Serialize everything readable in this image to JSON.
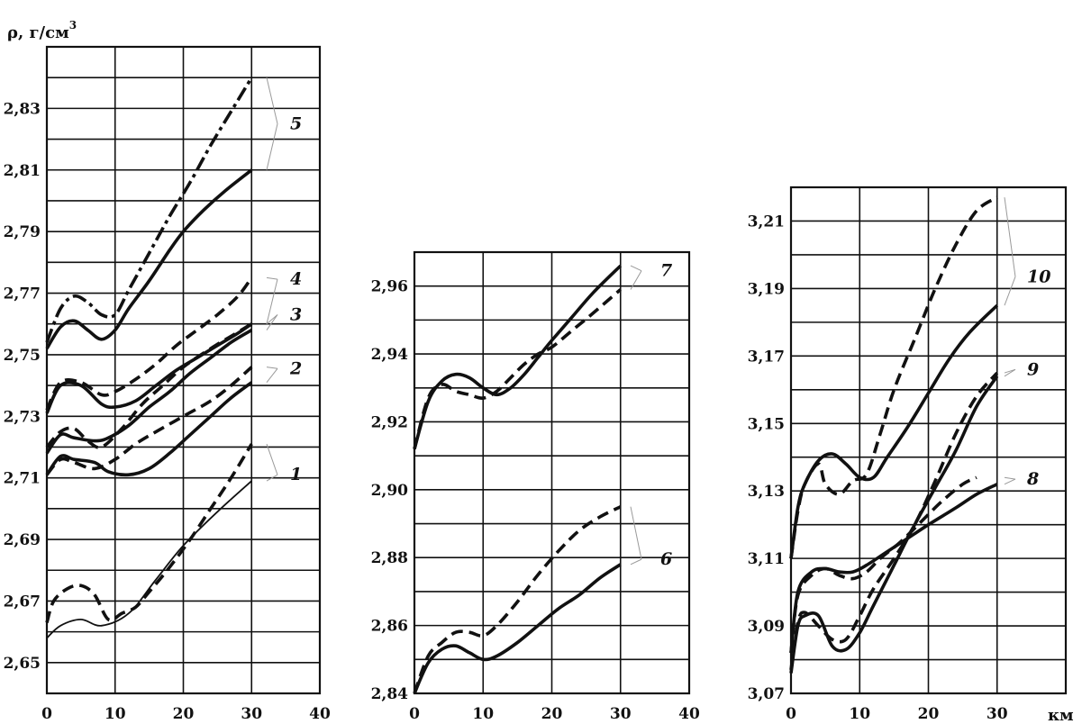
{
  "chart_data": [
    {
      "type": "line",
      "ylabel": "ρ, г/см",
      "ylabel_sup": "3",
      "xlabel": "",
      "xlim": [
        0,
        40
      ],
      "ylim": [
        2.64,
        2.85
      ],
      "x_ticks": [
        {
          "v": 0,
          "label": "0"
        },
        {
          "v": 10,
          "label": "10"
        },
        {
          "v": 20,
          "label": "20"
        },
        {
          "v": 30,
          "label": "30"
        },
        {
          "v": 40,
          "label": "40"
        }
      ],
      "y_ticks": [
        {
          "v": 2.65,
          "label": "2,65"
        },
        {
          "v": 2.67,
          "label": "2,67"
        },
        {
          "v": 2.69,
          "label": "2,69"
        },
        {
          "v": 2.71,
          "label": "2,71"
        },
        {
          "v": 2.73,
          "label": "2,73"
        },
        {
          "v": 2.75,
          "label": "2,75"
        },
        {
          "v": 2.77,
          "label": "2,77"
        },
        {
          "v": 2.79,
          "label": "2,79"
        },
        {
          "v": 2.81,
          "label": "2,81"
        },
        {
          "v": 2.83,
          "label": "2,83"
        }
      ],
      "grid": true,
      "series": [
        {
          "label": "1",
          "style": "solid-thin",
          "x": [
            0,
            2,
            5,
            8,
            12,
            16,
            20,
            25,
            30
          ],
          "y": [
            2.658,
            2.662,
            2.664,
            2.662,
            2.666,
            2.677,
            2.688,
            2.699,
            2.709
          ]
        },
        {
          "label": "1",
          "style": "dashed",
          "x": [
            0,
            1,
            3,
            5,
            7,
            9,
            11,
            13,
            15,
            18,
            21,
            24,
            27,
            30
          ],
          "y": [
            2.663,
            2.67,
            2.674,
            2.675,
            2.672,
            2.664,
            2.666,
            2.668,
            2.673,
            2.681,
            2.69,
            2.7,
            2.71,
            2.721
          ]
        },
        {
          "label": "2",
          "style": "solid",
          "x": [
            0,
            2,
            4,
            7,
            9,
            12,
            15,
            18,
            21,
            24,
            27,
            30
          ],
          "y": [
            2.711,
            2.717,
            2.716,
            2.715,
            2.712,
            2.711,
            2.713,
            2.718,
            2.724,
            2.73,
            2.736,
            2.741
          ]
        },
        {
          "label": "2",
          "style": "dashed",
          "x": [
            0,
            2,
            4,
            7,
            10,
            13,
            16,
            20,
            24,
            27,
            30
          ],
          "y": [
            2.711,
            2.716,
            2.715,
            2.713,
            2.716,
            2.721,
            2.725,
            2.73,
            2.735,
            2.74,
            2.746
          ]
        },
        {
          "label": "3",
          "style": "solid",
          "x": [
            0,
            2,
            4,
            7,
            9,
            12,
            15,
            18,
            21,
            24,
            27,
            30
          ],
          "y": [
            2.718,
            2.724,
            2.723,
            2.722,
            2.723,
            2.727,
            2.733,
            2.738,
            2.744,
            2.749,
            2.754,
            2.758
          ]
        },
        {
          "label": "3",
          "style": "dashed",
          "x": [
            0,
            2,
            4,
            6,
            8,
            11,
            14,
            17,
            20,
            24,
            27,
            30
          ],
          "y": [
            2.72,
            2.725,
            2.726,
            2.722,
            2.72,
            2.726,
            2.734,
            2.74,
            2.746,
            2.752,
            2.756,
            2.76
          ]
        },
        {
          "label": "4",
          "style": "solid",
          "x": [
            0,
            2,
            5,
            8,
            10,
            13,
            16,
            19,
            22,
            25,
            28,
            30
          ],
          "y": [
            2.731,
            2.74,
            2.74,
            2.734,
            2.733,
            2.735,
            2.74,
            2.745,
            2.749,
            2.753,
            2.757,
            2.76
          ]
        },
        {
          "label": "4",
          "style": "dashed",
          "x": [
            0,
            2,
            5,
            8,
            10,
            13,
            16,
            19,
            22,
            25,
            28,
            30
          ],
          "y": [
            2.732,
            2.741,
            2.741,
            2.737,
            2.738,
            2.742,
            2.747,
            2.753,
            2.758,
            2.763,
            2.769,
            2.775
          ]
        },
        {
          "label": "5",
          "style": "solid",
          "x": [
            0,
            2,
            4,
            6,
            8,
            10,
            12,
            15,
            18,
            20,
            23,
            26,
            30
          ],
          "y": [
            2.752,
            2.759,
            2.761,
            2.758,
            2.755,
            2.758,
            2.765,
            2.774,
            2.784,
            2.79,
            2.797,
            2.803,
            2.81
          ]
        },
        {
          "label": "5",
          "style": "dashdot",
          "x": [
            0,
            2,
            4,
            6,
            8,
            10,
            12,
            15,
            18,
            21,
            24,
            27,
            30
          ],
          "y": [
            2.754,
            2.765,
            2.769,
            2.767,
            2.763,
            2.763,
            2.771,
            2.783,
            2.795,
            2.806,
            2.818,
            2.829,
            2.84
          ]
        }
      ],
      "label_positions": [
        {
          "text": "1",
          "at_x": 35,
          "at_y": 2.711
        },
        {
          "text": "2",
          "at_x": 35,
          "at_y": 2.7455
        },
        {
          "text": "3",
          "at_x": 35,
          "at_y": 2.763
        },
        {
          "text": "4",
          "at_x": 35,
          "at_y": 2.7745
        },
        {
          "text": "5",
          "at_x": 35,
          "at_y": 2.825
        }
      ]
    },
    {
      "type": "line",
      "ylabel": "",
      "xlabel": "",
      "xlim": [
        0,
        40
      ],
      "ylim": [
        2.84,
        2.97
      ],
      "x_ticks": [
        {
          "v": 0,
          "label": "0"
        },
        {
          "v": 10,
          "label": "10"
        },
        {
          "v": 20,
          "label": "20"
        },
        {
          "v": 30,
          "label": "30"
        },
        {
          "v": 40,
          "label": "40"
        }
      ],
      "y_ticks": [
        {
          "v": 2.84,
          "label": "2,84"
        },
        {
          "v": 2.86,
          "label": "2,86"
        },
        {
          "v": 2.88,
          "label": "2,88"
        },
        {
          "v": 2.9,
          "label": "2,90"
        },
        {
          "v": 2.92,
          "label": "2,92"
        },
        {
          "v": 2.94,
          "label": "2,94"
        },
        {
          "v": 2.96,
          "label": "2,96"
        }
      ],
      "grid": true,
      "series": [
        {
          "label": "6",
          "style": "solid",
          "x": [
            0,
            2,
            4,
            6,
            8,
            10,
            12,
            15,
            18,
            21,
            24,
            27,
            30
          ],
          "y": [
            2.84,
            2.849,
            2.853,
            2.854,
            2.852,
            2.85,
            2.851,
            2.855,
            2.86,
            2.865,
            2.869,
            2.874,
            2.878
          ]
        },
        {
          "label": "6",
          "style": "dashed",
          "x": [
            0,
            2,
            4,
            6,
            8,
            10,
            12,
            15,
            18,
            21,
            24,
            27,
            30
          ],
          "y": [
            2.84,
            2.851,
            2.855,
            2.858,
            2.858,
            2.857,
            2.86,
            2.867,
            2.875,
            2.882,
            2.888,
            2.892,
            2.895
          ]
        },
        {
          "label": "7",
          "style": "solid",
          "x": [
            0,
            2,
            4,
            6,
            8,
            10,
            12,
            14,
            16,
            18,
            20,
            23,
            26,
            30
          ],
          "y": [
            2.912,
            2.926,
            2.932,
            2.934,
            2.933,
            2.93,
            2.928,
            2.93,
            2.934,
            2.939,
            2.944,
            2.951,
            2.958,
            2.966
          ]
        },
        {
          "label": "7",
          "style": "dashed",
          "x": [
            0,
            2,
            4,
            6,
            8,
            10,
            12,
            14,
            16,
            18,
            20,
            23,
            26,
            30
          ],
          "y": [
            2.912,
            2.927,
            2.931,
            2.929,
            2.928,
            2.927,
            2.929,
            2.933,
            2.937,
            2.94,
            2.942,
            2.947,
            2.952,
            2.959
          ]
        }
      ],
      "label_positions": [
        {
          "text": "6",
          "at_x": 35,
          "at_y": 2.8795
        },
        {
          "text": "7",
          "at_x": 35,
          "at_y": 2.9645
        }
      ]
    },
    {
      "type": "line",
      "ylabel": "",
      "xlabel": "км",
      "xlim": [
        0,
        40
      ],
      "ylim": [
        3.07,
        3.22
      ],
      "x_ticks": [
        {
          "v": 0,
          "label": "0"
        },
        {
          "v": 10,
          "label": "10"
        },
        {
          "v": 20,
          "label": "20"
        },
        {
          "v": 30,
          "label": "30"
        }
      ],
      "y_ticks": [
        {
          "v": 3.07,
          "label": "3,07"
        },
        {
          "v": 3.09,
          "label": "3,09"
        },
        {
          "v": 3.11,
          "label": "3,11"
        },
        {
          "v": 3.13,
          "label": "3,13"
        },
        {
          "v": 3.15,
          "label": "3,15"
        },
        {
          "v": 3.17,
          "label": "3,17"
        },
        {
          "v": 3.19,
          "label": "3,19"
        },
        {
          "v": 3.21,
          "label": "3,21"
        }
      ],
      "grid": true,
      "series": [
        {
          "label": "8",
          "style": "solid",
          "x": [
            0,
            1,
            3,
            5,
            7,
            9,
            11,
            14,
            17,
            20,
            24,
            27,
            30
          ],
          "y": [
            3.082,
            3.1,
            3.106,
            3.107,
            3.106,
            3.106,
            3.108,
            3.112,
            3.116,
            3.12,
            3.125,
            3.129,
            3.132
          ]
        },
        {
          "label": "8",
          "style": "dashed",
          "x": [
            0,
            1,
            3,
            5,
            7,
            9,
            11,
            13,
            16,
            19,
            22,
            25,
            27
          ],
          "y": [
            3.082,
            3.099,
            3.105,
            3.107,
            3.105,
            3.104,
            3.106,
            3.11,
            3.115,
            3.121,
            3.127,
            3.132,
            3.134
          ]
        },
        {
          "label": "9",
          "style": "solid",
          "x": [
            0,
            1,
            2,
            4,
            6,
            8,
            10,
            12,
            15,
            18,
            21,
            24,
            27,
            30
          ],
          "y": [
            3.076,
            3.09,
            3.093,
            3.093,
            3.084,
            3.083,
            3.088,
            3.096,
            3.108,
            3.12,
            3.131,
            3.142,
            3.155,
            3.164
          ]
        },
        {
          "label": "9",
          "style": "dashed",
          "x": [
            0,
            1,
            2,
            4,
            6,
            8,
            10,
            12,
            15,
            18,
            21,
            24,
            27,
            30
          ],
          "y": [
            3.077,
            3.091,
            3.094,
            3.09,
            3.086,
            3.086,
            3.093,
            3.101,
            3.11,
            3.12,
            3.133,
            3.147,
            3.158,
            3.165
          ]
        },
        {
          "label": "10",
          "style": "solid",
          "x": [
            0,
            1,
            2,
            4,
            6,
            8,
            10,
            12,
            14,
            17,
            20,
            23,
            26,
            30
          ],
          "y": [
            3.11,
            3.125,
            3.132,
            3.139,
            3.141,
            3.138,
            3.134,
            3.134,
            3.14,
            3.149,
            3.159,
            3.169,
            3.177,
            3.185
          ]
        },
        {
          "label": "10",
          "style": "dashed",
          "x": [
            0,
            1,
            2,
            4,
            5,
            7,
            9,
            11,
            13,
            15,
            18,
            21,
            24,
            27,
            30
          ],
          "y": [
            3.11,
            3.124,
            3.132,
            3.138,
            3.132,
            3.129,
            3.133,
            3.135,
            3.147,
            3.16,
            3.175,
            3.19,
            3.203,
            3.213,
            3.217
          ]
        }
      ],
      "label_positions": [
        {
          "text": "8",
          "at_x": 35,
          "at_y": 3.1335
        },
        {
          "text": "9",
          "at_x": 35,
          "at_y": 3.166
        },
        {
          "text": "10",
          "at_x": 35,
          "at_y": 3.1935
        }
      ]
    }
  ]
}
